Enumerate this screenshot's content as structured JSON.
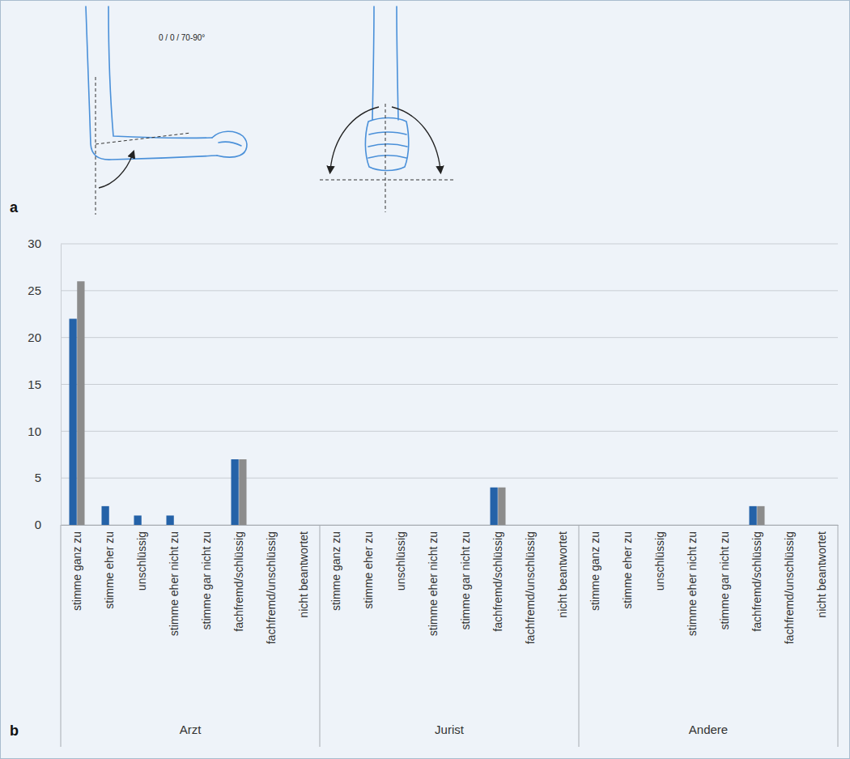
{
  "illustration": {
    "panel_label": "a",
    "annotation": "0 / 0 / 70-90°"
  },
  "chart_data": {
    "type": "bar",
    "panel_label": "b",
    "groups": [
      "Arzt",
      "Jurist",
      "Andere"
    ],
    "categories": [
      "stimme ganz zu",
      "stimme eher zu",
      "unschlüssig",
      "stimme eher nicht zu",
      "stimme gar nicht zu",
      "fachfremd/schlüssig",
      "fachfremd/unschlüssig",
      "nicht beantwortet",
      "stimme ganz zu",
      "stimme eher zu",
      "unschlüssig",
      "stimme eher nicht zu",
      "stimme gar nicht zu",
      "fachfremd/schlüssig",
      "fachfremd/unschlüssig",
      "nicht beantwortet",
      "stimme ganz zu",
      "stimme eher zu",
      "unschlüssig",
      "stimme eher nicht zu",
      "stimme gar nicht zu",
      "fachfremd/schlüssig",
      "fachfremd/unschlüssig",
      "nicht beantwortet"
    ],
    "series": [
      {
        "color": "#2462a8",
        "values": [
          22,
          2,
          1,
          1,
          0,
          7,
          0,
          0,
          0,
          0,
          0,
          0,
          0,
          4,
          0,
          0,
          0,
          0,
          0,
          0,
          0,
          2,
          0,
          0
        ]
      },
      {
        "color": "#8c8c8c",
        "values": [
          26,
          0,
          0,
          0,
          0,
          7,
          0,
          0,
          0,
          0,
          0,
          0,
          0,
          4,
          0,
          0,
          0,
          0,
          0,
          0,
          0,
          2,
          0,
          0
        ]
      }
    ],
    "ylim": [
      0,
      30
    ],
    "yticks": [
      0,
      5,
      10,
      15,
      20,
      25,
      30
    ],
    "grid": true
  }
}
